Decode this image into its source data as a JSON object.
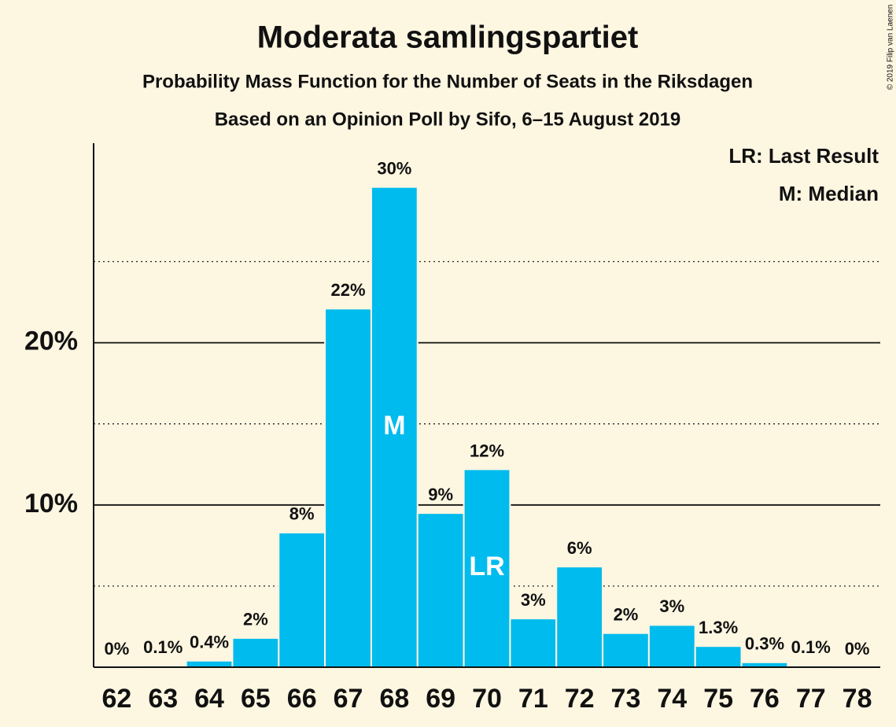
{
  "chart_data": {
    "type": "bar",
    "title": "Moderata samlingspartiet",
    "subtitle": "Probability Mass Function for the Number of Seats in the Riksdagen",
    "source": "Based on an Opinion Poll by Sifo, 6–15 August 2019",
    "credit": "© 2019 Filip van Laenen",
    "legend_notes": [
      "LR: Last Result",
      "M: Median"
    ],
    "categories": [
      "62",
      "63",
      "64",
      "65",
      "66",
      "67",
      "68",
      "69",
      "70",
      "71",
      "72",
      "73",
      "74",
      "75",
      "76",
      "77",
      "78"
    ],
    "values": [
      0,
      0.1,
      0.4,
      1.8,
      8.3,
      22.1,
      29.6,
      9.5,
      12.2,
      3.0,
      6.2,
      2.1,
      2.6,
      1.3,
      0.3,
      0.1,
      0
    ],
    "value_labels": [
      "0%",
      "0.1%",
      "0.4%",
      "2%",
      "8%",
      "22%",
      "30%",
      "9%",
      "12%",
      "3%",
      "6%",
      "2%",
      "3%",
      "1.3%",
      "0.3%",
      "0.1%",
      "0%"
    ],
    "bar_labels": [
      null,
      null,
      null,
      null,
      null,
      null,
      "M",
      null,
      "LR",
      null,
      null,
      null,
      null,
      null,
      null,
      null,
      null
    ],
    "color": "#00bbee",
    "ylim": [
      0,
      32.3
    ],
    "yticks": [
      {
        "value": 10,
        "label": "10%"
      },
      {
        "value": 20,
        "label": "20%"
      }
    ],
    "minor_yticks": [
      5,
      15,
      25
    ],
    "grid": true
  }
}
